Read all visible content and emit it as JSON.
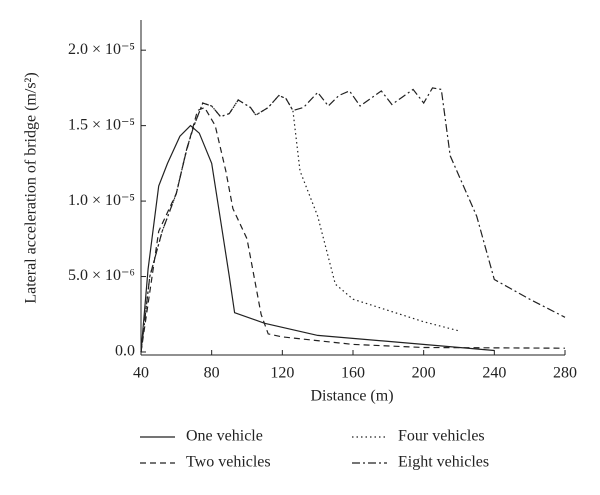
{
  "chart_data": {
    "type": "line",
    "x_label": "Distance (m)",
    "y_label": "Lateral acceleration of bridge (m/s²)",
    "xlim": [
      40,
      280
    ],
    "xticks": [
      40,
      80,
      120,
      160,
      200,
      240,
      280
    ],
    "ylim": [
      -2e-07,
      2.2e-05
    ],
    "yticks": [
      {
        "value": 0,
        "label": "0.0"
      },
      {
        "value": 5e-06,
        "label": "5.0 × 10⁻⁶"
      },
      {
        "value": 1e-05,
        "label": "1.0 × 10⁻⁵"
      },
      {
        "value": 1.5e-05,
        "label": "1.5 × 10⁻⁵"
      },
      {
        "value": 2e-05,
        "label": "2.0 × 10⁻⁵"
      }
    ],
    "series": [
      {
        "name": "One vehicle",
        "color": "#222222",
        "line_style": "solid",
        "x": [
          40,
          44,
          50,
          55,
          62,
          68,
          73,
          80,
          86,
          90,
          93,
          110,
          140,
          180,
          240
        ],
        "values": [
          0,
          5.5e-06,
          1.1e-05,
          1.25e-05,
          1.43e-05,
          1.5e-05,
          1.45e-05,
          1.25e-05,
          8e-06,
          5e-06,
          2.6e-06,
          1.9e-06,
          1.1e-06,
          7e-07,
          1e-07
        ]
      },
      {
        "name": "Two vehicles",
        "color": "#222222",
        "line_style": "dashed",
        "x": [
          40,
          50,
          60,
          65,
          72,
          76,
          82,
          88,
          92,
          100,
          108,
          112,
          120,
          160,
          200,
          280
        ],
        "values": [
          0,
          8e-06,
          1.05e-05,
          1.3e-05,
          1.6e-05,
          1.62e-05,
          1.5e-05,
          1.2e-05,
          9.5e-06,
          7.5e-06,
          2.5e-06,
          1.2e-06,
          1e-06,
          5e-07,
          3e-07,
          2.5e-07
        ]
      },
      {
        "name": "Four vehicles",
        "color": "#222222",
        "line_style": "dotted",
        "x": [
          40,
          45,
          52,
          60,
          66,
          70,
          75,
          80,
          85,
          90,
          95,
          102,
          105,
          112,
          118,
          122,
          126,
          130,
          140,
          150,
          160,
          200,
          220
        ],
        "values": [
          0,
          5e-06,
          8e-06,
          1.05e-05,
          1.35e-05,
          1.5e-05,
          1.65e-05,
          1.63e-05,
          1.56e-05,
          1.58e-05,
          1.67e-05,
          1.62e-05,
          1.57e-05,
          1.62e-05,
          1.7e-05,
          1.68e-05,
          1.6e-05,
          1.2e-05,
          9e-06,
          4.5e-06,
          3.5e-06,
          2e-06,
          1.4e-06
        ]
      },
      {
        "name": "Eight vehicles",
        "color": "#222222",
        "line_style": "dashdot",
        "x": [
          40,
          45,
          52,
          60,
          66,
          70,
          75,
          80,
          85,
          90,
          95,
          102,
          105,
          112,
          118,
          122,
          126,
          132,
          140,
          146,
          152,
          158,
          164,
          170,
          176,
          182,
          188,
          194,
          200,
          205,
          210,
          215,
          230,
          240,
          260,
          280
        ],
        "values": [
          0,
          5e-06,
          8e-06,
          1.05e-05,
          1.35e-05,
          1.5e-05,
          1.65e-05,
          1.63e-05,
          1.56e-05,
          1.58e-05,
          1.67e-05,
          1.62e-05,
          1.57e-05,
          1.62e-05,
          1.7e-05,
          1.68e-05,
          1.6e-05,
          1.62e-05,
          1.72e-05,
          1.63e-05,
          1.7e-05,
          1.73e-05,
          1.63e-05,
          1.68e-05,
          1.73e-05,
          1.64e-05,
          1.69e-05,
          1.74e-05,
          1.65e-05,
          1.75e-05,
          1.74e-05,
          1.3e-05,
          9e-06,
          4.8e-06,
          3.5e-06,
          2.3e-06
        ]
      }
    ]
  }
}
